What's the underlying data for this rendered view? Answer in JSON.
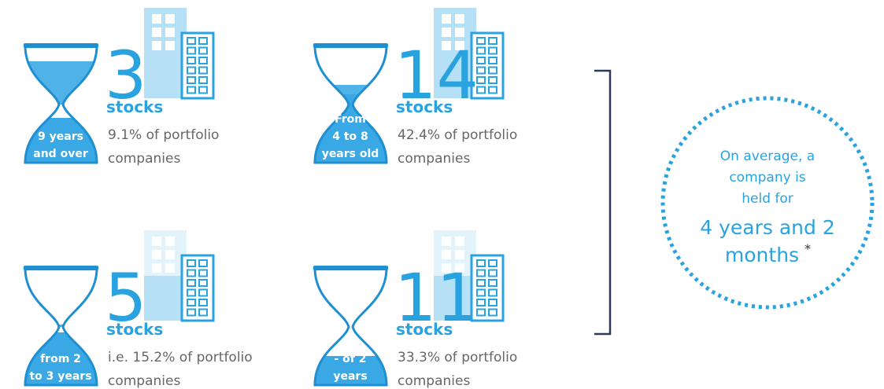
{
  "groups": [
    {
      "duration": [
        "9 years",
        "and over"
      ],
      "count": "3",
      "unit": "stocks",
      "share": [
        "9.1% of portfolio",
        "companies"
      ]
    },
    {
      "duration": [
        "From",
        "4 to 8",
        "years old"
      ],
      "count": "14",
      "unit": "stocks",
      "share": [
        "42.4% of portfolio",
        "companies"
      ]
    },
    {
      "duration": [
        "from 2",
        "to 3 years"
      ],
      "count": "5",
      "unit": "stocks",
      "share": [
        "i.e. 15.2% of portfolio",
        "companies"
      ]
    },
    {
      "duration": [
        "- of 2",
        "years"
      ],
      "count": "11",
      "unit": "stocks",
      "share": [
        "33.3% of portfolio",
        "companies"
      ]
    }
  ],
  "summary": {
    "lines": [
      "On average, a",
      "company is",
      "held for"
    ],
    "value": [
      "4 years and 2",
      "months"
    ],
    "footnote": "*"
  }
}
